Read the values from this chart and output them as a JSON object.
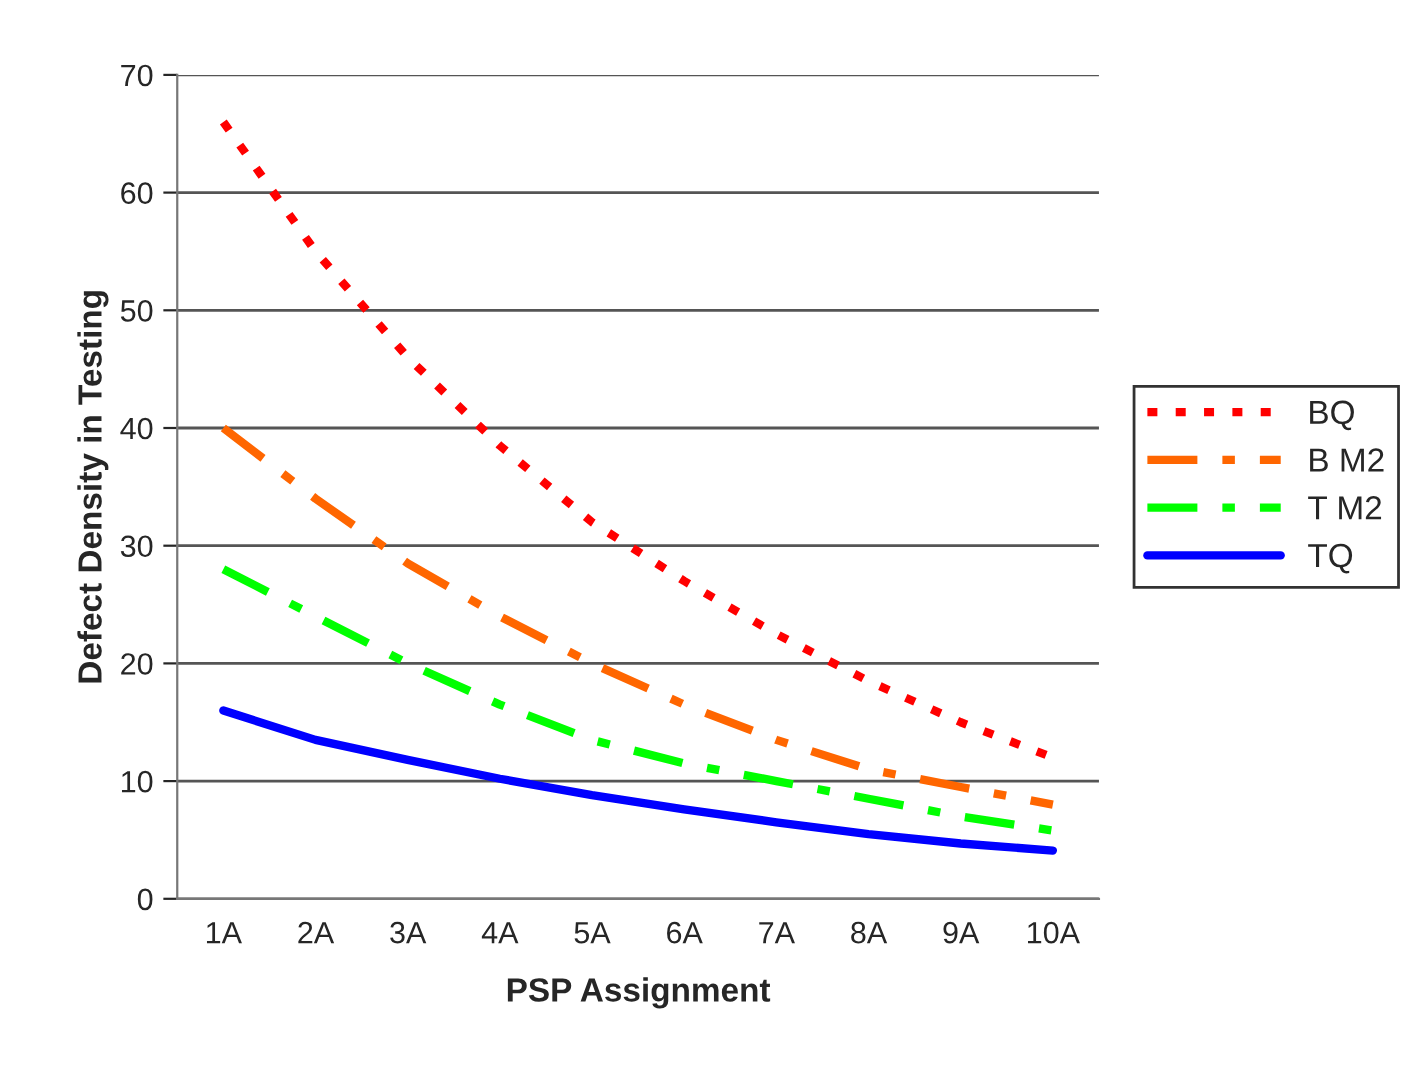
{
  "chart_data": {
    "type": "line",
    "xlabel": "PSP Assignment",
    "ylabel": "Defect Density in Testing",
    "categories": [
      "1A",
      "2A",
      "3A",
      "4A",
      "5A",
      "6A",
      "7A",
      "8A",
      "9A",
      "10A"
    ],
    "series": [
      {
        "name": "BQ",
        "color": "#ff0000",
        "line_style": "dotted",
        "values": [
          66,
          55,
          46,
          38.5,
          32,
          27,
          22.5,
          18.5,
          15,
          12
        ]
      },
      {
        "name": "B M2",
        "color": "#ff6600",
        "line_style": "dashed",
        "values": [
          40,
          34,
          28.5,
          24,
          20,
          16.5,
          13.5,
          11,
          9.5,
          8
        ]
      },
      {
        "name": "T M2",
        "color": "#00ff00",
        "line_style": "dashed",
        "values": [
          28,
          24,
          20,
          16.5,
          13.5,
          11.5,
          10,
          8.5,
          7,
          5.8
        ]
      },
      {
        "name": "TQ",
        "color": "#0000ff",
        "line_style": "solid",
        "values": [
          16,
          13.5,
          11.8,
          10.2,
          8.8,
          7.6,
          6.5,
          5.5,
          4.7,
          4.1
        ]
      }
    ],
    "ylim": [
      0,
      70
    ],
    "yticks": [
      0,
      10,
      20,
      30,
      40,
      50,
      60,
      70
    ],
    "grid": "y",
    "legend": "right",
    "marker": "none"
  }
}
